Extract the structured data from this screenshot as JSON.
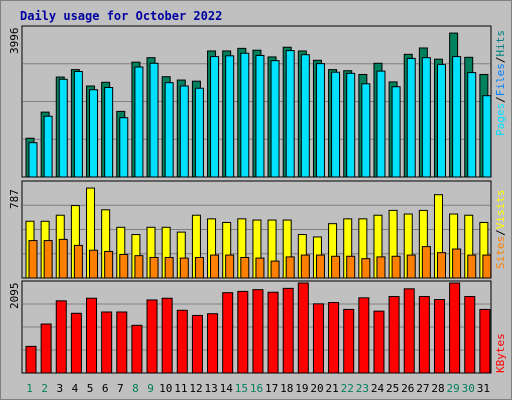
{
  "chart_data": {
    "title": "Daily usage for October 2022",
    "type": "bar",
    "categories": [
      "1",
      "2",
      "3",
      "4",
      "5",
      "6",
      "7",
      "8",
      "9",
      "10",
      "11",
      "12",
      "13",
      "14",
      "15",
      "16",
      "17",
      "18",
      "19",
      "20",
      "21",
      "22",
      "23",
      "24",
      "25",
      "26",
      "27",
      "28",
      "29",
      "30",
      "31"
    ],
    "weekend_days": [
      "1",
      "2",
      "8",
      "9",
      "15",
      "16",
      "22",
      "23",
      "29",
      "30"
    ],
    "panels": [
      {
        "name": "hits-files-pages",
        "ymax_label": "3996",
        "ymax": 3996,
        "legend": [
          "Pages",
          "/",
          "Files",
          "/",
          "Hits"
        ],
        "legend_colors": [
          "#00e0ff",
          "#000000",
          "#0080ff",
          "#000000",
          "#008080"
        ],
        "series": [
          {
            "name": "Hits",
            "color": "#00805c",
            "values": [
              1040,
              1740,
              2680,
              2880,
              2440,
              2540,
              1760,
              3080,
              3200,
              2690,
              2600,
              2570,
              3380,
              3380,
              3450,
              3400,
              3220,
              3480,
              3380,
              3130,
              2880,
              2850,
              2750,
              3050,
              2550,
              3290,
              3460,
              3160,
              3860,
              3210,
              2750
            ]
          },
          {
            "name": "Files",
            "color": "#00e0ff",
            "values": [
              920,
              1630,
              2620,
              2830,
              2340,
              2400,
              1590,
              2950,
              3050,
              2530,
              2440,
              2380,
              3230,
              3250,
              3320,
              3260,
              3120,
              3390,
              3280,
              3040,
              2810,
              2780,
              2500,
              2840,
              2420,
              3180,
              3200,
              3020,
              3230,
              2800,
              2180
            ]
          }
        ]
      },
      {
        "name": "visits-sites",
        "ymax_label": "787",
        "ymax": 787,
        "legend": [
          "Sites",
          "/",
          "Visits"
        ],
        "legend_colors": [
          "#ff8000",
          "#000000",
          "#ffff00"
        ],
        "series": [
          {
            "name": "Visits",
            "color": "#ffff00",
            "values": [
              470,
              470,
              520,
              600,
              745,
              565,
              420,
              360,
              420,
              420,
              380,
              520,
              490,
              460,
              490,
              480,
              480,
              480,
              360,
              340,
              450,
              490,
              490,
              520,
              560,
              530,
              560,
              690,
              530,
              520,
              460
            ]
          },
          {
            "name": "Sites",
            "color": "#ff8000",
            "values": [
              310,
              310,
              320,
              270,
              230,
              220,
              195,
              185,
              170,
              170,
              165,
              170,
              190,
              190,
              170,
              165,
              140,
              175,
              190,
              190,
              180,
              180,
              160,
              175,
              180,
              190,
              260,
              210,
              240,
              190,
              190
            ]
          }
        ]
      },
      {
        "name": "kbytes",
        "ymax_label": "2095",
        "ymax": 2095,
        "legend": [
          "KBytes"
        ],
        "legend_colors": [
          "#ff0000"
        ],
        "series": [
          {
            "name": "KBytes",
            "color": "#ff0000",
            "values": [
              620,
              1140,
              1680,
              1390,
              1740,
              1420,
              1420,
              1110,
              1700,
              1740,
              1460,
              1340,
              1380,
              1870,
              1900,
              1940,
              1880,
              1970,
              2095,
              1610,
              1640,
              1480,
              1750,
              1440,
              1780,
              1960,
              1780,
              1710,
              2095,
              1780,
              1480
            ]
          }
        ]
      }
    ]
  }
}
